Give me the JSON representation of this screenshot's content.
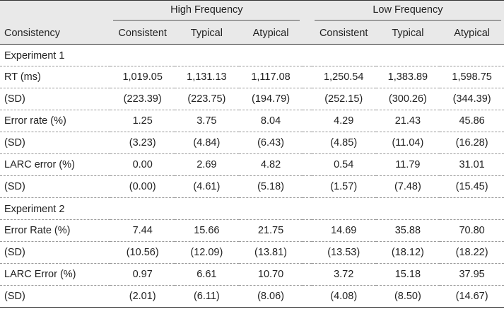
{
  "headers": {
    "group_high": "High Frequency",
    "group_low": "Low Frequency",
    "row_label": "Consistency",
    "columns": [
      "Consistent",
      "Typical",
      "Atypical",
      "Consistent",
      "Typical",
      "Atypical"
    ]
  },
  "rows": [
    {
      "label": "Experiment 1",
      "section": true,
      "values": [
        "",
        "",
        "",
        "",
        "",
        ""
      ]
    },
    {
      "label": "RT (ms)",
      "values": [
        "1,019.05",
        "1,131.13",
        "1,117.08",
        "1,250.54",
        "1,383.89",
        "1,598.75"
      ]
    },
    {
      "label": "(SD)",
      "values": [
        "(223.39)",
        "(223.75)",
        "(194.79)",
        "(252.15)",
        "(300.26)",
        "(344.39)"
      ]
    },
    {
      "label": "Error rate (%)",
      "values": [
        "1.25",
        "3.75",
        "8.04",
        "4.29",
        "21.43",
        "45.86"
      ]
    },
    {
      "label": "(SD)",
      "values": [
        "(3.23)",
        "(4.84)",
        "(6.43)",
        "(4.85)",
        "(11.04)",
        "(16.28)"
      ]
    },
    {
      "label": "LARC error (%)",
      "values": [
        "0.00",
        "2.69",
        "4.82",
        "0.54",
        "11.79",
        "31.01"
      ]
    },
    {
      "label": "(SD)",
      "values": [
        "(0.00)",
        "(4.61)",
        "(5.18)",
        "(1.57)",
        "(7.48)",
        "(15.45)"
      ]
    },
    {
      "label": "Experiment 2",
      "section": true,
      "values": [
        "",
        "",
        "",
        "",
        "",
        ""
      ]
    },
    {
      "label": "Error Rate (%)",
      "values": [
        "7.44",
        "15.66",
        "21.75",
        "14.69",
        "35.88",
        "70.80"
      ]
    },
    {
      "label": "(SD)",
      "values": [
        "(10.56)",
        "(12.09)",
        "(13.81)",
        "(13.53)",
        "(18.12)",
        "(18.22)"
      ]
    },
    {
      "label": "LARC Error (%)",
      "values": [
        "0.97",
        "6.61",
        "10.70",
        "3.72",
        "15.18",
        "37.95"
      ]
    },
    {
      "label": "(SD)",
      "values": [
        "(2.01)",
        "(6.11)",
        "(8.06)",
        "(4.08)",
        "(8.50)",
        "(14.67)"
      ]
    }
  ]
}
